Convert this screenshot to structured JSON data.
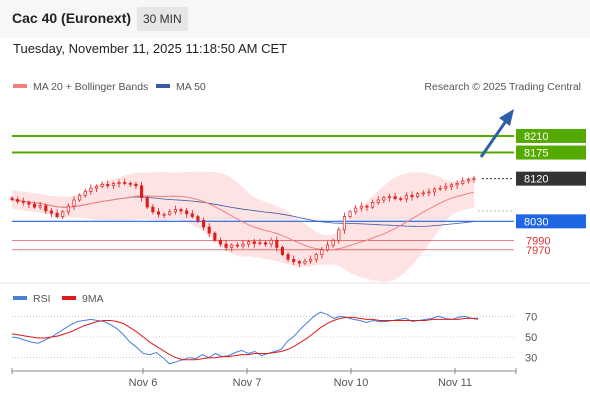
{
  "header": {
    "title": "Cac 40 (Euronext)",
    "timeframe": "30 MIN"
  },
  "datetime": "Tuesday, November 11, 2025 11:18:50 AM CET",
  "legend": {
    "ma20": "MA 20 + Bollinger Bands",
    "ma50": "MA 50",
    "credit": "Research © 2025 Trading Central"
  },
  "rsi_legend": {
    "rsi": "RSI",
    "ma9": "9MA"
  },
  "colors": {
    "candle": "#e01b1b",
    "ma20": "#f08080",
    "ma50": "#3a5aa8",
    "band": "#fde3e3",
    "resistance": "#55aa00",
    "support": "#1f66e5",
    "red_level": "#e03030",
    "current": "#333333",
    "arrow": "#2e5fa8",
    "rsi": "#4a7fd9",
    "rsi_ma": "#e01b1b"
  },
  "chart_data": [
    {
      "type": "candlestick",
      "title": "Cac 40 (Euronext)",
      "timeframe": "30 MIN",
      "x_labels": [
        "Nov 6",
        "Nov 7",
        "Nov 10",
        "Nov 11"
      ],
      "ylim": [
        7900,
        8290
      ],
      "levels": [
        {
          "value": 8210,
          "label": "8210",
          "kind": "resistance"
        },
        {
          "value": 8175,
          "label": "8175",
          "kind": "resistance"
        },
        {
          "value": 8120,
          "label": "8120",
          "kind": "current"
        },
        {
          "value": 8030,
          "label": "8030",
          "kind": "support"
        },
        {
          "value": 7990,
          "label": "7990",
          "kind": "minor"
        },
        {
          "value": 7970,
          "label": "7970",
          "kind": "minor"
        }
      ],
      "series": [
        {
          "name": "MA 20 + Bollinger Bands",
          "indicator": "ma20_bb"
        },
        {
          "name": "MA 50",
          "indicator": "ma50"
        }
      ],
      "close": [
        8076,
        8072,
        8070,
        8066,
        8060,
        8063,
        8052,
        8047,
        8040,
        8050,
        8062,
        8075,
        8085,
        8093,
        8100,
        8104,
        8108,
        8105,
        8110,
        8112,
        8110,
        8108,
        8105,
        8080,
        8060,
        8050,
        8045,
        8045,
        8050,
        8055,
        8052,
        8046,
        8040,
        8032,
        8018,
        8005,
        7990,
        7982,
        7975,
        7980,
        7978,
        7982,
        7987,
        7983,
        7985,
        7982,
        7990,
        7975,
        7960,
        7950,
        7945,
        7942,
        7946,
        7950,
        7960,
        7970,
        7980,
        7990,
        8012,
        8040,
        8050,
        8058,
        8062,
        8060,
        8070,
        8075,
        8080,
        8082,
        8078,
        8077,
        8085,
        8082,
        8088,
        8090,
        8092,
        8098,
        8100,
        8103,
        8107,
        8110,
        8115,
        8118,
        8120
      ]
    },
    {
      "type": "line",
      "title": "RSI",
      "ylim": [
        20,
        80
      ],
      "yticks": [
        70,
        50,
        30
      ],
      "series": [
        {
          "name": "RSI",
          "values": [
            50,
            49,
            47,
            45,
            44,
            47,
            50,
            54,
            58,
            62,
            65,
            66,
            67,
            66,
            65,
            62,
            58,
            52,
            45,
            40,
            34,
            33,
            35,
            30,
            24,
            26,
            28,
            30,
            29,
            33,
            30,
            34,
            31,
            32,
            35,
            37,
            34,
            36,
            32,
            34,
            36,
            38,
            46,
            51,
            58,
            64,
            70,
            74,
            72,
            68,
            70,
            69,
            67,
            66,
            64,
            66,
            65,
            65,
            66,
            67,
            68,
            65,
            66,
            67,
            68,
            70,
            68,
            67,
            69,
            70,
            68,
            67
          ]
        },
        {
          "name": "9MA",
          "values": [
            53,
            52,
            51,
            50,
            49,
            49,
            50,
            51,
            53,
            55,
            58,
            61,
            63,
            65,
            66,
            66,
            65,
            63,
            59,
            55,
            50,
            45,
            41,
            37,
            33,
            30,
            28,
            28,
            28,
            29,
            30,
            30,
            31,
            31,
            32,
            33,
            33,
            34,
            34,
            34,
            35,
            36,
            38,
            41,
            45,
            49,
            54,
            59,
            63,
            66,
            68,
            69,
            69,
            68,
            67,
            67,
            66,
            66,
            66,
            66,
            66,
            66,
            66,
            66,
            67,
            67,
            67,
            67,
            67,
            68,
            68,
            68
          ]
        }
      ]
    }
  ]
}
